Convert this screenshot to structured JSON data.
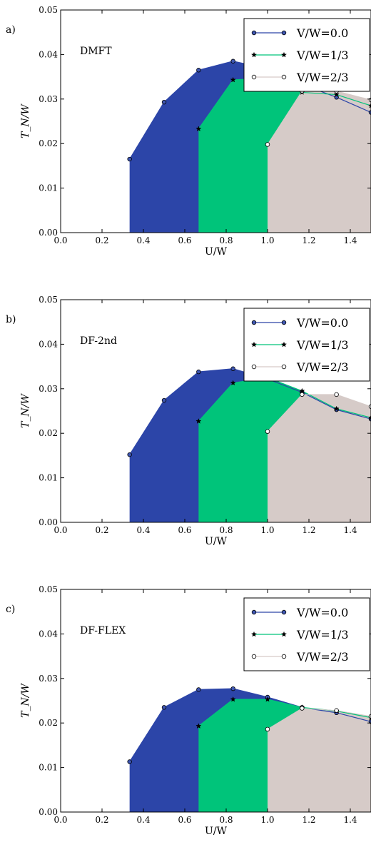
{
  "colors": {
    "v0": "#2c45a8",
    "v13": "#00c47a",
    "v23": "#d6cbc8",
    "v0_marker": "#3f57b3",
    "v13_marker": "#000000",
    "v23_marker": "#ffffff"
  },
  "chart_data": [
    {
      "type": "area",
      "panel_label": "a)",
      "method_label": "DMFT",
      "xlabel": "U/W",
      "ylabel": "T_N/W",
      "xlim": [
        0.0,
        1.5
      ],
      "ylim": [
        0.0,
        0.05
      ],
      "xticks": [
        "0.0",
        "0.2",
        "0.4",
        "0.6",
        "0.8",
        "1.0",
        "1.2",
        "1.4"
      ],
      "yticks": [
        "0.00",
        "0.01",
        "0.02",
        "0.03",
        "0.04",
        "0.05"
      ],
      "legend_position": "top-right",
      "series": [
        {
          "name": "V/W=0.0",
          "x": [
            0.3333,
            0.5,
            0.6667,
            0.8333,
            1.0,
            1.1667,
            1.3333,
            1.5
          ],
          "y": [
            0.0165,
            0.0293,
            0.0365,
            0.0385,
            0.0368,
            0.0333,
            0.0304,
            0.027
          ]
        },
        {
          "name": "V/W=1/3",
          "x": [
            0.6667,
            0.8333,
            1.0,
            1.1667,
            1.3333,
            1.5
          ],
          "y": [
            0.0233,
            0.0343,
            0.0347,
            0.0315,
            0.031,
            0.0285
          ]
        },
        {
          "name": "V/W=2/3",
          "x": [
            1.0,
            1.1667,
            1.3333,
            1.5
          ],
          "y": [
            0.0198,
            0.0318,
            0.0318,
            0.0298
          ]
        }
      ]
    },
    {
      "type": "area",
      "panel_label": "b)",
      "method_label": "DF-2nd",
      "xlabel": "U/W",
      "ylabel": "T_N/W",
      "xlim": [
        0.0,
        1.5
      ],
      "ylim": [
        0.0,
        0.05
      ],
      "xticks": [
        "0.0",
        "0.2",
        "0.4",
        "0.6",
        "0.8",
        "1.0",
        "1.2",
        "1.4"
      ],
      "yticks": [
        "0.00",
        "0.01",
        "0.02",
        "0.03",
        "0.04",
        "0.05"
      ],
      "legend_position": "top-right",
      "series": [
        {
          "name": "V/W=0.0",
          "x": [
            0.3333,
            0.5,
            0.6667,
            0.8333,
            1.0,
            1.1667,
            1.3333,
            1.5
          ],
          "y": [
            0.0152,
            0.0274,
            0.0338,
            0.0345,
            0.0322,
            0.0292,
            0.0253,
            0.0232
          ]
        },
        {
          "name": "V/W=1/3",
          "x": [
            0.6667,
            0.8333,
            1.0,
            1.1667,
            1.3333,
            1.5
          ],
          "y": [
            0.0227,
            0.0313,
            0.0325,
            0.0295,
            0.0255,
            0.0235
          ]
        },
        {
          "name": "V/W=2/3",
          "x": [
            1.0,
            1.1667,
            1.3333,
            1.5
          ],
          "y": [
            0.0204,
            0.0287,
            0.0287,
            0.026
          ]
        }
      ]
    },
    {
      "type": "area",
      "panel_label": "c)",
      "method_label": "DF-FLEX",
      "xlabel": "U/W",
      "ylabel": "T_N/W",
      "xlim": [
        0.0,
        1.5
      ],
      "ylim": [
        0.0,
        0.05
      ],
      "xticks": [
        "0.0",
        "0.2",
        "0.4",
        "0.6",
        "0.8",
        "1.0",
        "1.2",
        "1.4"
      ],
      "yticks": [
        "0.00",
        "0.01",
        "0.02",
        "0.03",
        "0.04",
        "0.05"
      ],
      "legend_position": "top-right",
      "series": [
        {
          "name": "V/W=0.0",
          "x": [
            0.3333,
            0.5,
            0.6667,
            0.8333,
            1.0,
            1.1667,
            1.3333,
            1.5
          ],
          "y": [
            0.0113,
            0.0235,
            0.0275,
            0.0277,
            0.0258,
            0.0235,
            0.0223,
            0.0203
          ]
        },
        {
          "name": "V/W=1/3",
          "x": [
            0.6667,
            0.8333,
            1.0,
            1.1667,
            1.3333,
            1.5
          ],
          "y": [
            0.0193,
            0.0253,
            0.0253,
            0.0235,
            0.0227,
            0.0212
          ]
        },
        {
          "name": "V/W=2/3",
          "x": [
            1.0,
            1.1667,
            1.3333,
            1.5
          ],
          "y": [
            0.0186,
            0.0233,
            0.0228,
            0.0215
          ]
        }
      ]
    }
  ]
}
